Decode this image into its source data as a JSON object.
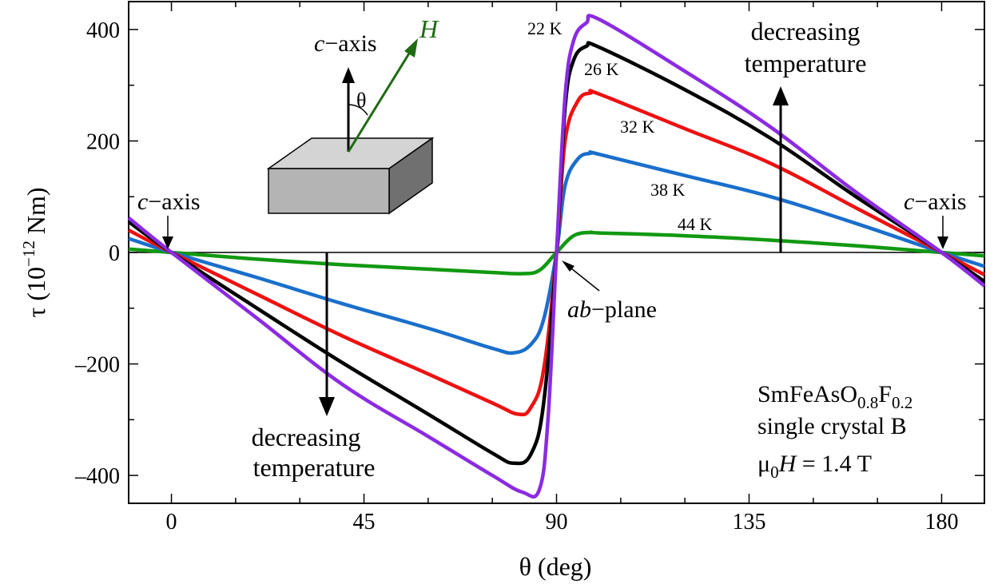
{
  "chart_data": {
    "type": "line",
    "xlabel": "θ (deg)",
    "ylabel_main": "τ (10",
    "ylabel_exp": "−12",
    "ylabel_unit": " Nm)",
    "xlim": [
      -10,
      190
    ],
    "ylim": [
      -450,
      450
    ],
    "xticks": [
      0,
      45,
      90,
      135,
      180
    ],
    "xtick_labels": [
      "0",
      "45",
      "90",
      "135",
      "180"
    ],
    "yticks": [
      -400,
      -200,
      0,
      200,
      400
    ],
    "ytick_labels": [
      "–400",
      "–200",
      "0",
      "200",
      "400"
    ],
    "grid": false,
    "colors": {
      "22 K": "#8b2be2",
      "26 K": "#000000",
      "32 K": "#ee1111",
      "38 K": "#1a6fcc",
      "44 K": "#119911"
    },
    "series": [
      {
        "name": "22 K",
        "x": [
          -10,
          0,
          20,
          40,
          60,
          75,
          82,
          86,
          88,
          90,
          92,
          94,
          97,
          100,
          120,
          140,
          160,
          180,
          190
        ],
        "values": [
          62,
          0,
          -118,
          -237,
          -330,
          -400,
          -430,
          -425,
          -300,
          0,
          280,
          380,
          412,
          418,
          325,
          225,
          108,
          0,
          -60
        ]
      },
      {
        "name": "26 K",
        "x": [
          -10,
          0,
          20,
          40,
          60,
          75,
          80,
          84,
          87,
          90,
          92,
          94,
          97,
          100,
          120,
          140,
          160,
          180,
          190
        ],
        "values": [
          55,
          0,
          -100,
          -198,
          -290,
          -360,
          -378,
          -362,
          -270,
          0,
          260,
          345,
          370,
          368,
          292,
          205,
          100,
          0,
          -52
        ]
      },
      {
        "name": "32 K",
        "x": [
          -10,
          0,
          20,
          40,
          60,
          75,
          81,
          84,
          87,
          90,
          92,
          95,
          98,
          100,
          120,
          140,
          160,
          180,
          190
        ],
        "values": [
          40,
          0,
          -75,
          -150,
          -218,
          -270,
          -290,
          -278,
          -210,
          0,
          200,
          272,
          286,
          284,
          222,
          160,
          80,
          0,
          -40
        ]
      },
      {
        "name": "38 K",
        "x": [
          -10,
          0,
          20,
          40,
          60,
          75,
          80,
          84,
          87,
          90,
          92,
          95,
          98,
          100,
          120,
          140,
          160,
          180,
          190
        ],
        "values": [
          25,
          0,
          -45,
          -92,
          -136,
          -172,
          -180,
          -165,
          -120,
          0,
          120,
          168,
          178,
          176,
          138,
          100,
          52,
          0,
          -25
        ]
      },
      {
        "name": "44 K",
        "x": [
          -10,
          0,
          20,
          40,
          60,
          75,
          82,
          86,
          90,
          94,
          98,
          100,
          120,
          140,
          160,
          180,
          190
        ],
        "values": [
          6,
          0,
          -12,
          -22,
          -30,
          -36,
          -38,
          -32,
          0,
          30,
          36,
          35,
          30,
          22,
          12,
          0,
          -6
        ]
      }
    ],
    "curve_labels": [
      "22 K",
      "26 K",
      "32 K",
      "38 K",
      "44 K"
    ],
    "annotations": {
      "c_axis_left": "c",
      "c_axis_right": "c",
      "axis_suffix": "−axis",
      "ab_plane_a": "ab",
      "ab_plane_b": "−plane",
      "decreasing_top_1": "decreasing",
      "decreasing_top_2": "temperature",
      "decreasing_bottom_1": "decreasing",
      "decreasing_bottom_2": "temperature",
      "inset_c_axis": "c",
      "inset_axis_suffix": "−axis",
      "inset_H": "H",
      "inset_theta": "θ",
      "sample_line1_base": "SmFeAsO",
      "sample_line1_sub1": "0.8",
      "sample_line1_mid": "F",
      "sample_line1_sub2": "0.2",
      "sample_line2": "single crystal B",
      "sample_line3_mu": "μ",
      "sample_line3_sub": "0",
      "sample_line3_H": "H",
      "sample_line3_rest": " = 1.4 T"
    }
  }
}
